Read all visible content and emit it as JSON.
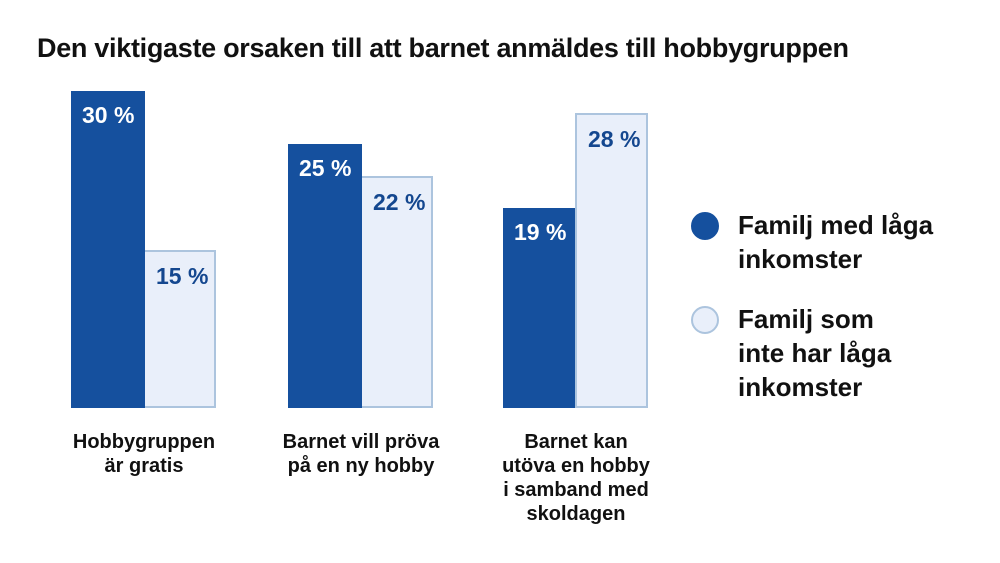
{
  "title": "Den viktigaste orsaken till att barnet anmäldes till hobbygruppen",
  "colors": {
    "dark_blue": "#15509E",
    "light_blue_fill": "#E9EFFA",
    "light_blue_border": "#ACC4DE",
    "value_label_blue": "#14478F",
    "value_label_white": "#FFFFFF",
    "text_black": "#111111",
    "background": "#FFFFFF"
  },
  "chart_data": {
    "type": "bar",
    "title": "Den viktigaste orsaken till att barnet anmäldes till hobbygruppen",
    "categories": [
      "Hobbygruppen\när gratis",
      "Barnet vill pröva\npå en ny hobby",
      "Barnet kan\nutöva en hobby\ni samband med\nskoldagen"
    ],
    "series": [
      {
        "name": "Familj med låga\ninkomster",
        "values": [
          30,
          25,
          19
        ],
        "color": "#15509E",
        "border_color": "#15509E",
        "label_color": "#FFFFFF"
      },
      {
        "name": "Familj som\ninte har låga\ninkomster",
        "values": [
          15,
          22,
          28
        ],
        "color": "#E9EFFA",
        "border_color": "#ACC4DE",
        "label_color": "#14478F"
      }
    ],
    "value_suffix": " %",
    "value_labels": "inside-top-left",
    "xlabel": "",
    "ylabel": "",
    "ylim": [
      0,
      32
    ],
    "grid": false,
    "legend_position": "right"
  }
}
